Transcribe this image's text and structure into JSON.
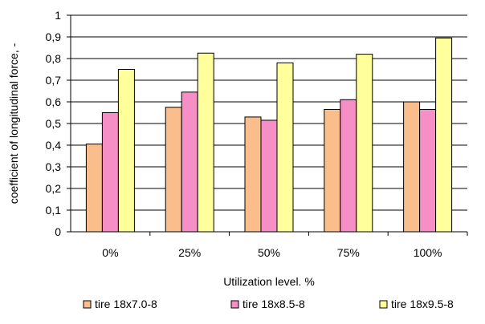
{
  "chart_data": {
    "type": "bar",
    "title": "",
    "xlabel": "Utilization level. %",
    "ylabel": "coefficient of longitudinal force, -",
    "categories": [
      "0%",
      "25%",
      "50%",
      "75%",
      "100%"
    ],
    "ylim": [
      0,
      1
    ],
    "yticks": [
      "0",
      "0,1",
      "0,2",
      "0,3",
      "0,4",
      "0,5",
      "0,6",
      "0,7",
      "0,8",
      "0,9",
      "1"
    ],
    "grid": true,
    "legend_position": "bottom",
    "series": [
      {
        "name": "tire 18x7.0-8",
        "color": "#F9BE8C",
        "values": [
          0.405,
          0.575,
          0.53,
          0.565,
          0.6
        ]
      },
      {
        "name": "tire 18x8.5-8",
        "color": "#F68FC6",
        "values": [
          0.55,
          0.645,
          0.515,
          0.61,
          0.565
        ]
      },
      {
        "name": "tire 18x9.5-8",
        "color": "#FFFF9C",
        "values": [
          0.75,
          0.825,
          0.78,
          0.82,
          0.895
        ]
      }
    ]
  }
}
